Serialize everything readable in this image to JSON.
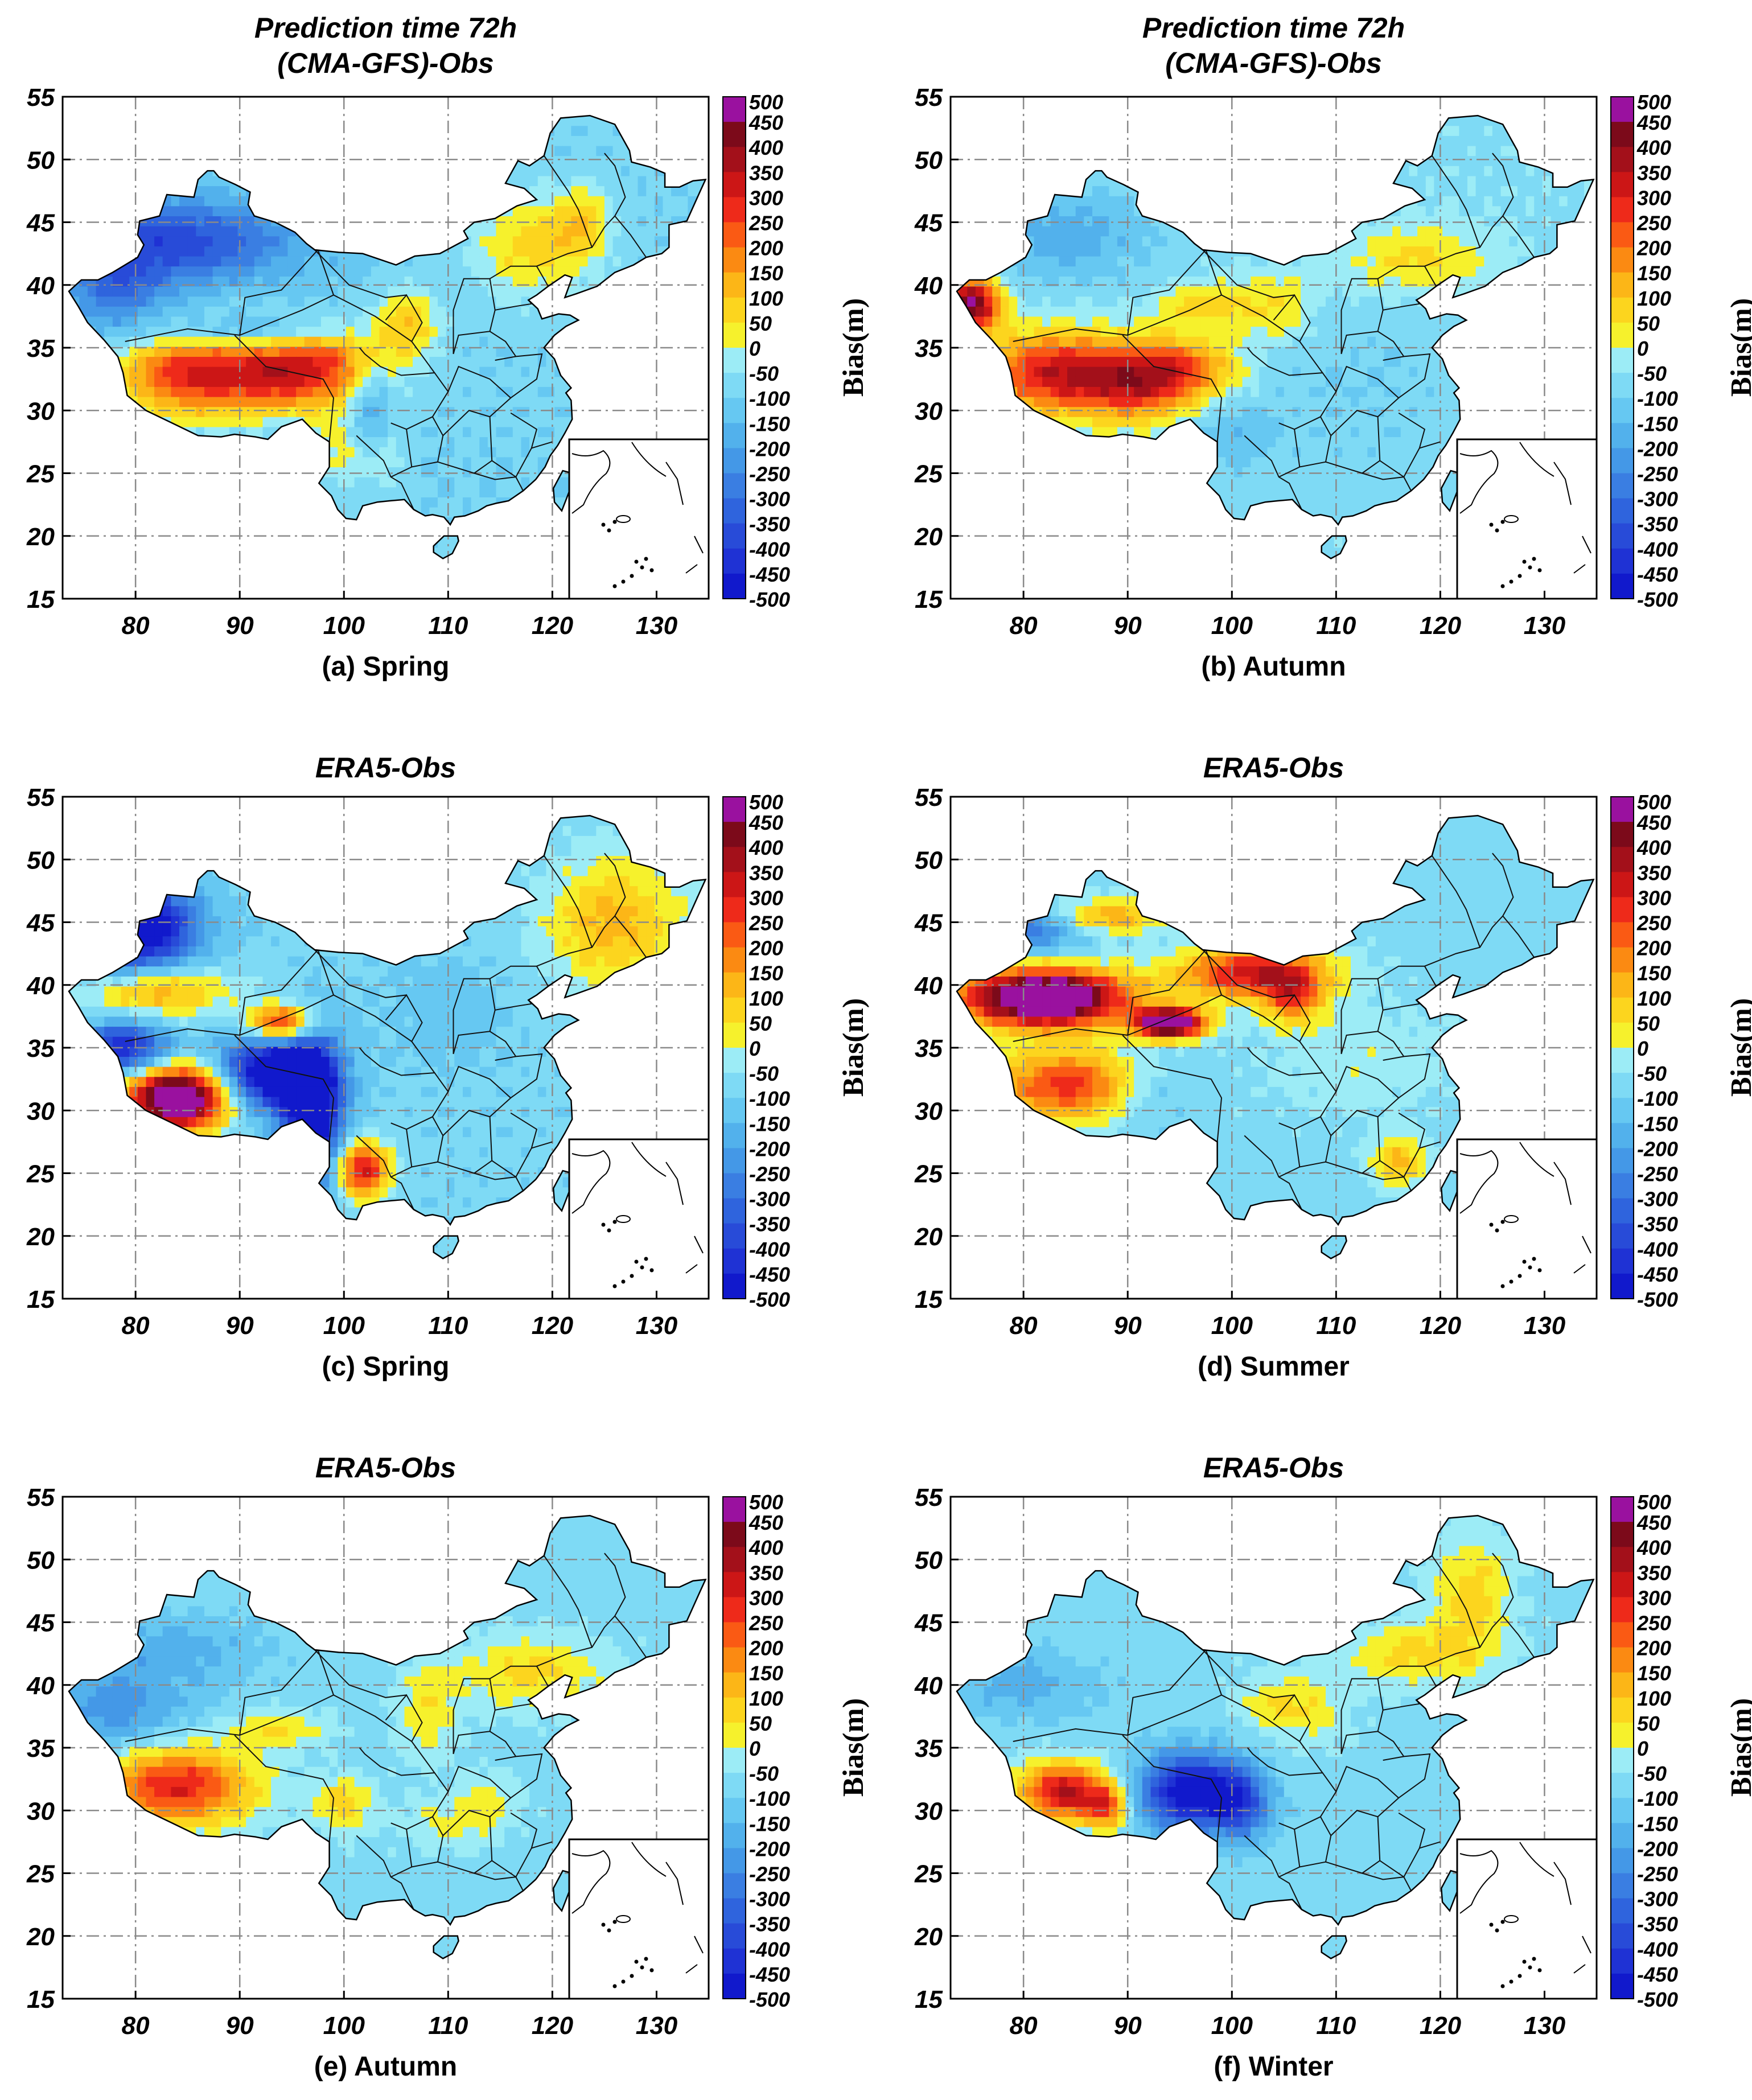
{
  "figure": {
    "colorbar_label": "Bias(m)",
    "colorbar_levels": [
      "500",
      "450",
      "400",
      "350",
      "300",
      "250",
      "200",
      "150",
      "100",
      "50",
      "0",
      "-50",
      "-100",
      "-150",
      "-200",
      "-250",
      "-300",
      "-350",
      "-400",
      "-450",
      "-500"
    ],
    "colorbar_colors": [
      "#9a119f",
      "#7c0a1a",
      "#a3101a",
      "#cc1616",
      "#ee2a1a",
      "#fa5a14",
      "#fb8a12",
      "#fcb617",
      "#fcd51e",
      "#f6f12c",
      "#9cecf6",
      "#7edaf5",
      "#66c8f2",
      "#52b1ec",
      "#4498e7",
      "#3a7ee2",
      "#2f64dd",
      "#284bd8",
      "#1f32d4",
      "#1119cc"
    ],
    "x_ticks": [
      "80",
      "90",
      "100",
      "110",
      "120",
      "130"
    ],
    "y_ticks": [
      "55",
      "50",
      "45",
      "40",
      "35",
      "30",
      "25",
      "20",
      "15"
    ],
    "x_tick_values": [
      80,
      90,
      100,
      110,
      120,
      130
    ],
    "y_tick_values": [
      55,
      50,
      45,
      40,
      35,
      30,
      25,
      20,
      15
    ],
    "lon_range": [
      73,
      135
    ],
    "lat_range": [
      15,
      55
    ]
  },
  "panels": [
    {
      "id": "a",
      "title_line1": "Prediction time 72h",
      "title_line2": "(CMA-GFS)-Obs",
      "caption": "(a) Spring",
      "scenario": "cma_spring"
    },
    {
      "id": "b",
      "title_line1": "Prediction time 72h",
      "title_line2": "(CMA-GFS)-Obs",
      "caption": "(b) Autumn",
      "scenario": "cma_autumn"
    },
    {
      "id": "c",
      "title_line1": "ERA5-Obs",
      "title_line2": "",
      "caption": "(c) Spring",
      "scenario": "era_spring"
    },
    {
      "id": "d",
      "title_line1": "ERA5-Obs",
      "title_line2": "",
      "caption": "(d) Summer",
      "scenario": "era_summer"
    },
    {
      "id": "e",
      "title_line1": "ERA5-Obs",
      "title_line2": "",
      "caption": "(e) Autumn",
      "scenario": "era_autumn"
    },
    {
      "id": "f",
      "title_line1": "ERA5-Obs",
      "title_line2": "",
      "caption": "(f) Winter",
      "scenario": "era_winter"
    }
  ]
}
